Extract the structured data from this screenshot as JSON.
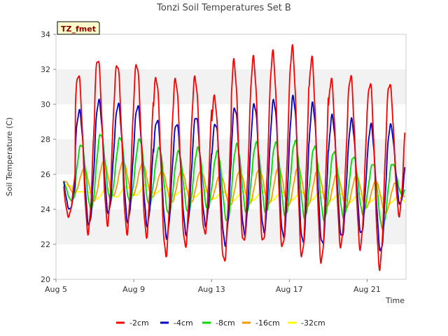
{
  "chart_data": {
    "type": "line",
    "title": "Tonzi Soil Temperatures Set B",
    "xlabel": "Time",
    "ylabel": "Soil Temperature (C)",
    "badge": "TZ_fmet",
    "x_start": "Aug 5",
    "x_range_days": [
      0,
      18
    ],
    "ylim": [
      20,
      34
    ],
    "y_ticks": [
      20,
      22,
      24,
      26,
      28,
      30,
      32,
      34
    ],
    "x_ticks": [
      {
        "day": 0,
        "label": "Aug 5"
      },
      {
        "day": 4,
        "label": "Aug 9"
      },
      {
        "day": 8,
        "label": "Aug 13"
      },
      {
        "day": 12,
        "label": "Aug 17"
      },
      {
        "day": 16,
        "label": "Aug 21"
      }
    ],
    "grid": "horizontal bands",
    "legend_position": "bottom",
    "series": [
      {
        "name": "-2cm",
        "color": "#ff0000",
        "peak_offset": 0.15,
        "maxima": [
          26.9,
          31.7,
          32.6,
          32.3,
          32.3,
          31.5,
          31.4,
          31.5,
          30.4,
          32.4,
          32.6,
          32.9,
          33.2,
          32.6,
          31.4,
          31.6,
          31.2,
          31.2
        ],
        "minima": [
          23.6,
          22.7,
          23.2,
          22.7,
          22.5,
          21.4,
          21.9,
          22.6,
          21.0,
          22.1,
          22.1,
          21.8,
          21.3,
          21.0,
          21.9,
          21.8,
          20.7,
          23.7
        ]
      },
      {
        "name": "-4cm",
        "color": "#0000cc",
        "peak_offset": 0.2,
        "maxima": [
          26.4,
          29.6,
          30.2,
          30.0,
          29.9,
          29.1,
          28.9,
          29.3,
          28.9,
          29.8,
          30.0,
          30.2,
          30.4,
          30.0,
          29.3,
          29.1,
          28.8,
          28.8
        ],
        "minima": [
          24.0,
          23.1,
          23.8,
          23.3,
          23.1,
          22.4,
          22.6,
          23.1,
          22.0,
          22.6,
          22.7,
          22.4,
          22.1,
          22.0,
          22.4,
          22.6,
          21.6,
          24.3
        ]
      },
      {
        "name": "-8cm",
        "color": "#00dd00",
        "peak_offset": 0.3,
        "maxima": [
          25.7,
          27.7,
          28.3,
          28.1,
          28.0,
          27.5,
          27.3,
          27.5,
          27.3,
          27.7,
          27.8,
          27.8,
          27.9,
          27.6,
          27.3,
          27.0,
          26.6,
          26.6
        ],
        "minima": [
          24.5,
          24.0,
          24.5,
          24.4,
          24.2,
          23.7,
          23.8,
          24.0,
          23.3,
          23.8,
          23.8,
          23.6,
          23.5,
          23.4,
          23.5,
          23.7,
          22.9,
          24.8
        ]
      },
      {
        "name": "-16cm",
        "color": "#ff9900",
        "peak_offset": 0.45,
        "maxima": [
          25.6,
          26.3,
          26.7,
          26.7,
          26.6,
          26.2,
          26.2,
          26.2,
          26.0,
          26.2,
          26.3,
          26.4,
          26.4,
          26.2,
          26.0,
          25.9,
          25.6,
          25.5
        ],
        "minima": [
          24.9,
          24.5,
          24.8,
          24.8,
          24.7,
          24.4,
          24.4,
          24.5,
          24.2,
          24.3,
          24.3,
          24.2,
          24.2,
          24.2,
          24.1,
          24.1,
          23.8,
          24.7
        ]
      },
      {
        "name": "-32cm",
        "color": "#ffff00",
        "peak_offset": 0.6,
        "maxima": [
          25.4,
          25.0,
          25.2,
          25.3,
          25.4,
          25.3,
          25.2,
          25.1,
          25.0,
          25.0,
          25.0,
          25.0,
          25.0,
          25.0,
          24.9,
          24.9,
          24.8,
          24.7
        ],
        "minima": [
          25.0,
          24.6,
          24.7,
          24.8,
          24.9,
          24.8,
          24.7,
          24.6,
          24.5,
          24.5,
          24.5,
          24.5,
          24.5,
          24.5,
          24.4,
          24.4,
          24.3,
          24.3
        ]
      }
    ]
  }
}
